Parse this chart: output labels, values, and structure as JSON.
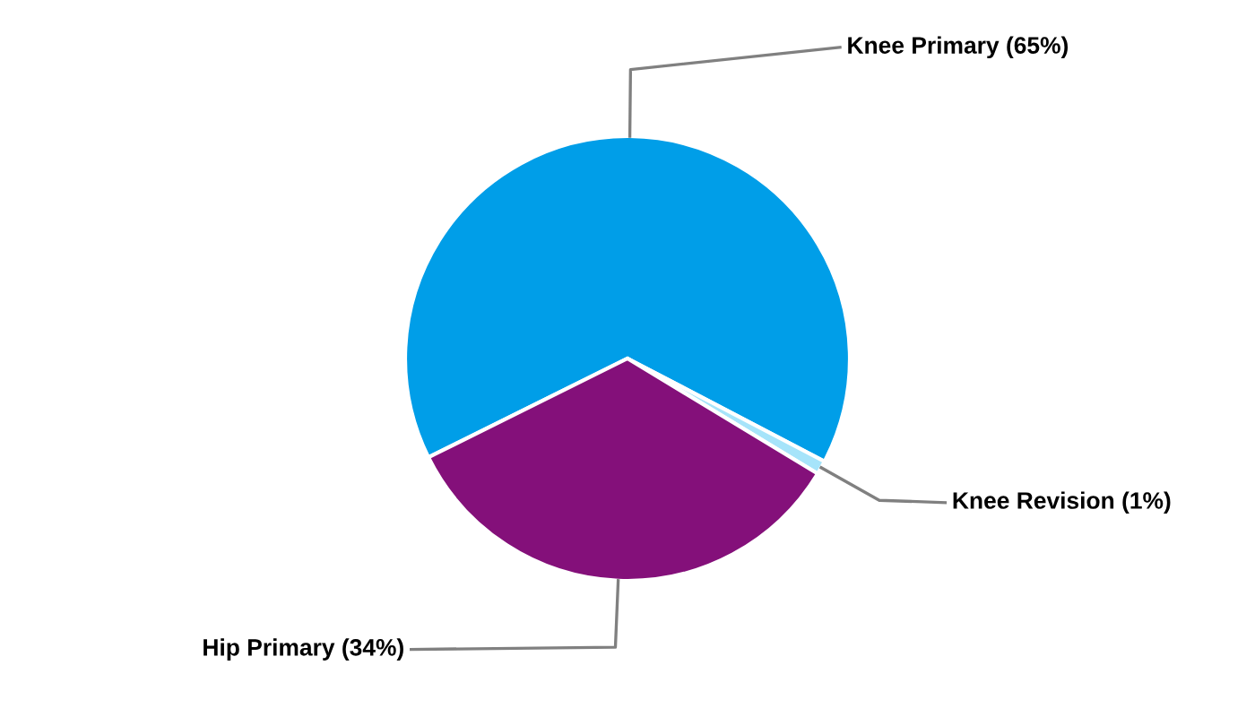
{
  "chart_data": {
    "type": "pie",
    "categories": [
      "Knee Primary (65%)",
      "Knee Revision (1%)",
      "Hip Primary (34%)"
    ],
    "values": [
      65,
      1,
      34
    ],
    "colors": [
      "#009ee8",
      "#a6e4fa",
      "#84107a"
    ]
  }
}
